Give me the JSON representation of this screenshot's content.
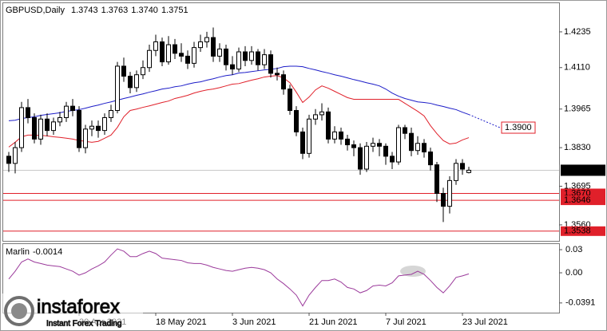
{
  "chart_data": {
    "type": "candlestick",
    "title": "GBPUSD,Daily",
    "last_bar_labels": [
      "1.3743",
      "1.3763",
      "1.3740",
      "1.3751"
    ],
    "categories": [
      null,
      null,
      null,
      null,
      null,
      null,
      null,
      null,
      null,
      null,
      null,
      "30 Apr 2021",
      null,
      null,
      null,
      null,
      null,
      null,
      null,
      null,
      null,
      null,
      null,
      "18 May 2021",
      null,
      null,
      null,
      null,
      null,
      null,
      null,
      null,
      null,
      null,
      null,
      "3 Jun 2021",
      null,
      null,
      null,
      null,
      null,
      null,
      null,
      null,
      null,
      null,
      null,
      "21 Jun 2021",
      null,
      null,
      null,
      null,
      null,
      null,
      null,
      null,
      null,
      null,
      null,
      "7 Jul 2021",
      null,
      null,
      null,
      null,
      null,
      null,
      null,
      null,
      null,
      null,
      null,
      "23 Jul 2021",
      null
    ],
    "open": [
      1.38,
      1.3775,
      1.383,
      1.397,
      1.3935,
      1.386,
      1.393,
      1.389,
      1.392,
      1.3935,
      1.3975,
      1.396,
      1.383,
      1.3895,
      1.3905,
      1.389,
      1.3935,
      1.396,
      1.4115,
      1.408,
      1.404,
      1.4085,
      1.411,
      1.417,
      1.42,
      1.413,
      1.419,
      1.416,
      1.415,
      1.4125,
      1.418,
      1.42,
      1.4215,
      1.415,
      1.4175,
      1.412,
      1.4105,
      1.4165,
      1.4135,
      1.4165,
      1.412,
      1.4155,
      1.409,
      1.4085,
      1.4035,
      1.396,
      1.3885,
      1.381,
      1.393,
      1.3945,
      1.3955,
      1.386,
      1.3885,
      1.386,
      1.384,
      1.383,
      1.3755,
      1.3835,
      1.3845,
      1.3835,
      1.38,
      1.378,
      1.39,
      1.388,
      1.382,
      1.3845,
      1.3815,
      1.377,
      1.367,
      1.3625,
      1.3715,
      1.3775,
      1.3743
    ],
    "high": [
      1.3815,
      1.385,
      1.399,
      1.4,
      1.395,
      1.3945,
      1.395,
      1.3935,
      1.3955,
      1.399,
      1.4,
      1.3975,
      1.391,
      1.3925,
      1.3925,
      1.395,
      1.398,
      1.413,
      1.4145,
      1.4095,
      1.41,
      1.4135,
      1.419,
      1.4225,
      1.4215,
      1.422,
      1.421,
      1.4195,
      1.417,
      1.42,
      1.4225,
      1.4235,
      1.425,
      1.4195,
      1.419,
      1.415,
      1.418,
      1.4185,
      1.4185,
      1.4175,
      1.4175,
      1.417,
      1.411,
      1.41,
      1.405,
      1.3975,
      1.39,
      1.3945,
      1.3965,
      1.3985,
      1.397,
      1.3905,
      1.39,
      1.3875,
      1.3855,
      1.3845,
      1.385,
      1.3865,
      1.386,
      1.3845,
      1.3815,
      1.391,
      1.391,
      1.39,
      1.387,
      1.386,
      1.383,
      1.378,
      1.369,
      1.373,
      1.379,
      1.379,
      1.3763
    ],
    "low": [
      1.3745,
      1.374,
      1.3815,
      1.3915,
      1.3845,
      1.384,
      1.387,
      1.3875,
      1.3905,
      1.392,
      1.394,
      1.3815,
      1.381,
      1.387,
      1.3865,
      1.3875,
      1.392,
      1.395,
      1.406,
      1.402,
      1.4025,
      1.407,
      1.4095,
      1.415,
      1.4115,
      1.412,
      1.414,
      1.413,
      1.4105,
      1.411,
      1.4165,
      1.418,
      1.413,
      1.413,
      1.41,
      1.4085,
      1.4095,
      1.4115,
      1.412,
      1.41,
      1.4105,
      1.4075,
      1.4065,
      1.4015,
      1.3945,
      1.387,
      1.379,
      1.3795,
      1.391,
      1.3925,
      1.3845,
      1.3845,
      1.384,
      1.382,
      1.38,
      1.3735,
      1.3745,
      1.3815,
      1.38,
      1.377,
      1.3755,
      1.377,
      1.386,
      1.38,
      1.3805,
      1.3795,
      1.375,
      1.364,
      1.357,
      1.36,
      1.37,
      1.3735,
      1.374
    ],
    "close": [
      1.3775,
      1.383,
      1.397,
      1.3935,
      1.386,
      1.393,
      1.389,
      1.392,
      1.3935,
      1.3975,
      1.396,
      1.383,
      1.3895,
      1.3905,
      1.389,
      1.3935,
      1.396,
      1.4115,
      1.408,
      1.404,
      1.4085,
      1.411,
      1.417,
      1.42,
      1.413,
      1.419,
      1.416,
      1.415,
      1.4125,
      1.418,
      1.42,
      1.4215,
      1.415,
      1.4175,
      1.412,
      1.4105,
      1.4165,
      1.4135,
      1.4165,
      1.412,
      1.4155,
      1.409,
      1.4085,
      1.4035,
      1.396,
      1.3885,
      1.381,
      1.393,
      1.3945,
      1.3955,
      1.386,
      1.3885,
      1.386,
      1.384,
      1.383,
      1.3755,
      1.3835,
      1.3845,
      1.3835,
      1.38,
      1.378,
      1.39,
      1.388,
      1.382,
      1.3845,
      1.3815,
      1.377,
      1.367,
      1.3625,
      1.3715,
      1.3775,
      1.3755,
      1.3751
    ],
    "up_color": "#ffffff",
    "down_color": "#000000",
    "ylim": [
      1.3504,
      1.4338
    ],
    "yticks": [
      1.4235,
      {
        "value": 1.411,
        "label": "1.4110"
      },
      1.3965,
      {
        "value": 1.383,
        "label": "1.3830"
      },
      1.3695,
      {
        "value": 1.356,
        "label": "1.3560"
      }
    ],
    "overlays": [
      {
        "color": "#e0202a",
        "values": [
          1.3832,
          1.3849,
          1.3868,
          1.3874,
          1.3874,
          1.3873,
          1.3871,
          1.3868,
          1.3866,
          1.3863,
          1.386,
          1.3855,
          1.3852,
          1.3849,
          1.3852,
          1.3863,
          1.3874,
          1.3901,
          1.3938,
          1.396,
          1.3965,
          1.3971,
          1.3976,
          1.3982,
          1.3988,
          1.3993,
          1.4002,
          1.4007,
          1.4013,
          1.4021,
          1.4027,
          1.4032,
          1.4035,
          1.404,
          1.4046,
          1.4052,
          1.4054,
          1.406,
          1.4066,
          1.4071,
          1.4077,
          1.408,
          1.4082,
          1.4074,
          1.4057,
          1.4024,
          1.3988,
          1.4007,
          1.4032,
          1.4046,
          1.4038,
          1.4027,
          1.4016,
          1.4005,
          1.3999,
          1.3999,
          1.3999,
          1.3999,
          1.3999,
          1.3999,
          1.3999,
          1.3999,
          1.3985,
          1.3971,
          1.3957,
          1.3941,
          1.3907,
          1.3879,
          1.3855,
          1.3843,
          1.3846,
          1.3857,
          1.3865
        ]
      },
      {
        "color": "#1c1cc8",
        "values": [
          1.3924,
          1.3926,
          1.3932,
          1.3935,
          1.3938,
          1.3943,
          1.3946,
          1.3949,
          1.3952,
          1.3957,
          1.396,
          1.3963,
          1.3968,
          1.3974,
          1.3979,
          1.3985,
          1.399,
          1.3996,
          1.4002,
          1.4007,
          1.4013,
          1.4018,
          1.4024,
          1.4029,
          1.4035,
          1.4038,
          1.4043,
          1.4046,
          1.4052,
          1.4057,
          1.406,
          1.4066,
          1.4071,
          1.4077,
          1.4082,
          1.4085,
          1.4091,
          1.4093,
          1.4096,
          1.4099,
          1.4102,
          1.4104,
          1.4107,
          1.4113,
          1.4115,
          1.4115,
          1.4113,
          1.4107,
          1.4102,
          1.4096,
          1.4091,
          1.4085,
          1.408,
          1.4074,
          1.4068,
          1.4063,
          1.4057,
          1.4052,
          1.4046,
          1.4035,
          1.4021,
          1.401,
          1.4002,
          1.3996,
          1.399,
          1.3988,
          1.3985,
          1.3979,
          1.3974,
          1.3968,
          1.3963,
          1.3954,
          1.3946
        ]
      }
    ],
    "projection": {
      "value": 1.39,
      "label": "1.3900",
      "color": "#e0202a"
    },
    "levels": [
      {
        "value": 1.367,
        "label": "1.3670"
      },
      1.3646,
      1.3538
    ],
    "level_color": "#e0202a",
    "indicator": {
      "name": "Marlin",
      "color": "#9b3a9b",
      "values": [
        -0.008,
        0.002,
        0.014,
        0.018,
        0.014,
        0.012,
        0.01,
        0.009,
        0.008,
        0.005,
        0.002,
        -0.003,
        0,
        0.005,
        0.009,
        0.014,
        0.023,
        0.031,
        0.028,
        0.021,
        0.021,
        0.025,
        0.028,
        0.025,
        0.019,
        0.018,
        0.017,
        0.016,
        0.013,
        0.012,
        0.012,
        0.01,
        0.007,
        0.005,
        0.003,
        0.002,
        0.004,
        0.006,
        0.007,
        0.006,
        0.004,
        0,
        -0.008,
        -0.014,
        -0.021,
        -0.029,
        -0.043,
        -0.029,
        -0.019,
        -0.01,
        -0.01,
        -0.008,
        -0.012,
        -0.019,
        -0.021,
        -0.026,
        -0.023,
        -0.017,
        -0.016,
        -0.017,
        -0.013,
        -0.004,
        -0.003,
        -0.002,
        0.002,
        -0.002,
        -0.01,
        -0.019,
        -0.026,
        -0.017,
        -0.006,
        -0.004,
        -0.0014
      ],
      "ylim": [
        -0.0517,
        0.0383
      ],
      "yticks": [
        0.03,
        {
          "value": 0,
          "label": "0.00"
        },
        -0.0391
      ]
    },
    "watermark": {
      "brand": "instaforex",
      "tagline": "Instant Forex Trading"
    }
  }
}
